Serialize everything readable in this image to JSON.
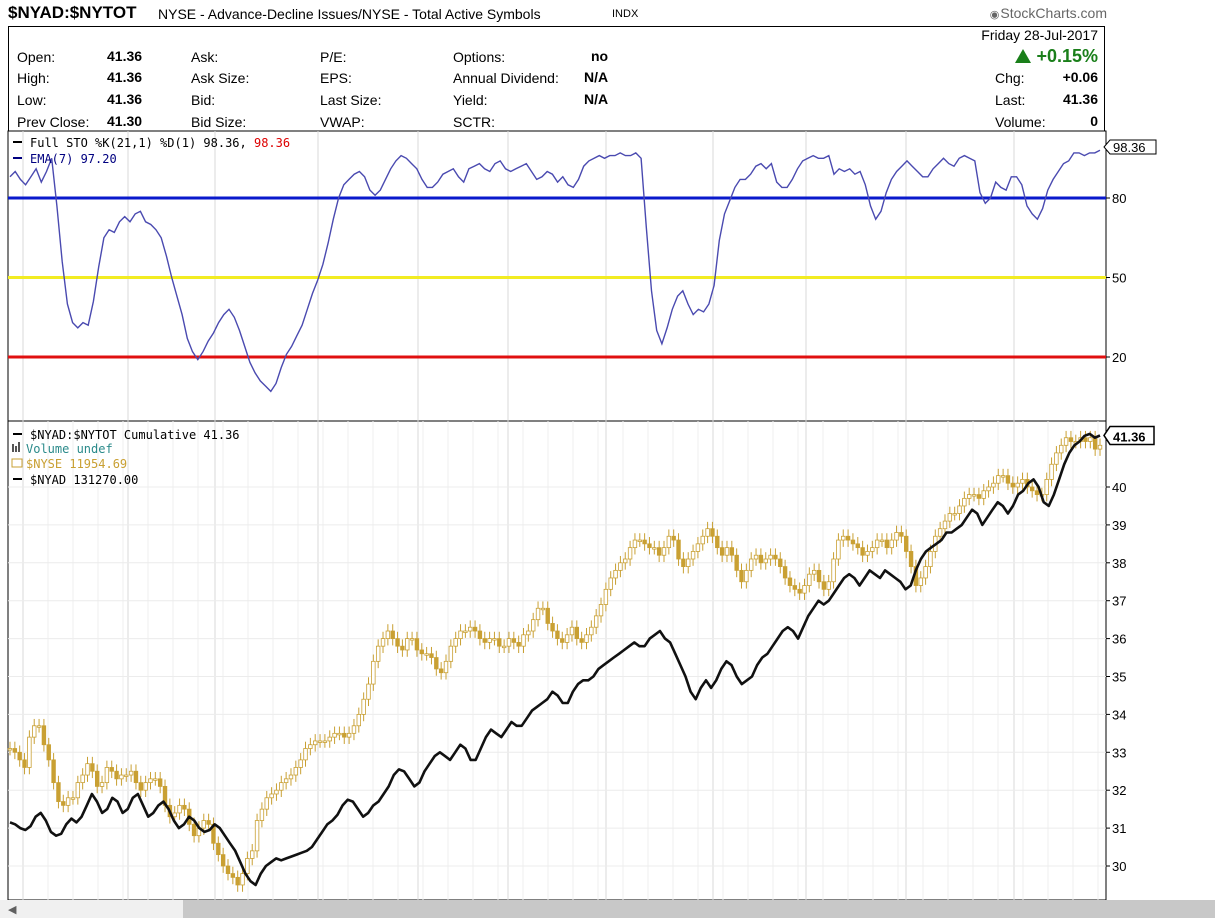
{
  "header": {
    "symbol": "$NYAD:$NYTOT",
    "description": "NYSE - Advance-Decline Issues/NYSE - Total Active Symbols",
    "exchange": "INDX",
    "brand": "StockCharts.com",
    "brand_icon": "copyright-icon"
  },
  "quote": {
    "col1": [
      {
        "label": "Open:",
        "value": "41.36"
      },
      {
        "label": "High:",
        "value": "41.36"
      },
      {
        "label": "Low:",
        "value": "41.36"
      },
      {
        "label": "Prev Close:",
        "value": "41.30"
      }
    ],
    "col2": [
      "Ask:",
      "Ask Size:",
      "Bid:",
      "Bid Size:"
    ],
    "col3": [
      "P/E:",
      "EPS:",
      "Last Size:",
      "VWAP:"
    ],
    "col4": [
      {
        "label": "Options:",
        "value": "no"
      },
      {
        "label": "Annual Dividend:",
        "value": "N/A"
      },
      {
        "label": "Yield:",
        "value": "N/A"
      },
      {
        "label": "SCTR:",
        "value": ""
      }
    ],
    "date": "Friday  28-Jul-2017",
    "change_pct": "+0.15%",
    "change_color": "#1a7f1a",
    "right": [
      {
        "label": "Chg:",
        "value": "+0.06"
      },
      {
        "label": "Last:",
        "value": "41.36"
      },
      {
        "label": "Volume:",
        "value": "0"
      }
    ]
  },
  "chart_data": [
    {
      "type": "line",
      "panel": "stochastic",
      "legend": [
        {
          "prefix": "Full STO %K(21,1) %D(1) 98.36, ",
          "extra": "98.36",
          "extra_color": "#dd0000",
          "color": "#000000"
        },
        {
          "prefix": "EMA(7) 97.20",
          "extra": "",
          "color": "#000080"
        }
      ],
      "y_ticks": [
        "80",
        "50",
        "20"
      ],
      "ylim": [
        0,
        100
      ],
      "reference_lines": [
        {
          "value": 80,
          "color": "#0a1acc"
        },
        {
          "value": 50,
          "color": "#f2ec22"
        },
        {
          "value": 20,
          "color": "#e01010"
        }
      ],
      "last_value_tag": "98.36",
      "series": [
        {
          "color": "#4a4ab0",
          "values": [
            88,
            90,
            87,
            85,
            88,
            91,
            86,
            90,
            95,
            77,
            56,
            40,
            33,
            31,
            33,
            32,
            41,
            54,
            65,
            68,
            67,
            71,
            73,
            71,
            74,
            75,
            71,
            70,
            68,
            65,
            58,
            50,
            43,
            36,
            27,
            22,
            19,
            22,
            26,
            29,
            33,
            36,
            38,
            35,
            30,
            24,
            18,
            14,
            11,
            9,
            7,
            10,
            16,
            21,
            24,
            28,
            32,
            38,
            44,
            49,
            55,
            63,
            72,
            80,
            85,
            87,
            89,
            90,
            88,
            83,
            81,
            83,
            87,
            91,
            94,
            96,
            95,
            93,
            91,
            87,
            84,
            84,
            86,
            89,
            90,
            91,
            88,
            86,
            91,
            92,
            93,
            91,
            90,
            93,
            94,
            91,
            90,
            91,
            92,
            93,
            90,
            87,
            88,
            90,
            89,
            86,
            88,
            85,
            84,
            87,
            92,
            94,
            95,
            96,
            95,
            96,
            96,
            97,
            96,
            96,
            97,
            95,
            69,
            45,
            30,
            25,
            31,
            38,
            43,
            45,
            40,
            36,
            38,
            37,
            40,
            47,
            64,
            74,
            79,
            84,
            87,
            87,
            89,
            92,
            93,
            91,
            93,
            86,
            84,
            84,
            87,
            91,
            94,
            95,
            96,
            95,
            95,
            96,
            89,
            91,
            90,
            91,
            89,
            90,
            85,
            77,
            72,
            75,
            82,
            87,
            90,
            92,
            94,
            92,
            90,
            88,
            88,
            91,
            93,
            95,
            93,
            92,
            95,
            96,
            95,
            94,
            82,
            78,
            80,
            86,
            84,
            83,
            88,
            88,
            85,
            77,
            74,
            72,
            76,
            83,
            87,
            90,
            93,
            94,
            97,
            97,
            96,
            97,
            97,
            98
          ]
        }
      ]
    },
    {
      "type": "line",
      "panel": "price",
      "legend": [
        {
          "text": "$NYAD:$NYTOT Cumulative 41.36",
          "color": "#000000"
        },
        {
          "text": "Volume undef",
          "color": "#2a8a8a"
        },
        {
          "text": "$NYSE 11954.69",
          "color": "#c9a033"
        },
        {
          "text": "$NYAD 131270.00",
          "color": "#000000"
        }
      ],
      "y_ticks": [
        "40",
        "39",
        "38",
        "37",
        "36",
        "35",
        "34",
        "33",
        "32",
        "31",
        "30"
      ],
      "ylim": [
        29.5,
        41.7
      ],
      "last_value_tag": "41.36",
      "series": [
        {
          "name": "$NYAD:$NYTOT Cumulative",
          "color": "#111111",
          "values": [
            31.15,
            31.1,
            31.0,
            30.95,
            31.05,
            31.3,
            31.4,
            31.2,
            30.9,
            30.8,
            30.85,
            31.1,
            31.25,
            31.15,
            31.3,
            31.6,
            31.9,
            31.7,
            31.4,
            31.5,
            31.8,
            31.7,
            31.4,
            31.5,
            31.8,
            31.9,
            31.6,
            31.3,
            31.4,
            31.6,
            31.7,
            31.5,
            31.2,
            31.0,
            31.1,
            31.3,
            31.2,
            31.0,
            30.9,
            30.95,
            31.1,
            31.0,
            30.8,
            30.6,
            30.4,
            30.1,
            29.8,
            29.6,
            29.5,
            29.8,
            30.0,
            30.1,
            30.2,
            30.15,
            30.2,
            30.25,
            30.3,
            30.35,
            30.4,
            30.5,
            30.7,
            30.9,
            31.1,
            31.2,
            31.35,
            31.6,
            31.75,
            31.7,
            31.5,
            31.3,
            31.4,
            31.6,
            31.7,
            31.9,
            32.1,
            32.4,
            32.55,
            32.5,
            32.3,
            32.1,
            32.2,
            32.5,
            32.7,
            32.9,
            33.0,
            32.9,
            32.8,
            33.0,
            33.2,
            33.1,
            32.8,
            32.8,
            33.1,
            33.4,
            33.6,
            33.5,
            33.4,
            33.6,
            33.8,
            33.7,
            33.7,
            33.9,
            34.1,
            34.2,
            34.3,
            34.4,
            34.6,
            34.5,
            34.3,
            34.3,
            34.6,
            34.8,
            34.9,
            34.9,
            35.0,
            35.2,
            35.3,
            35.4,
            35.5,
            35.6,
            35.7,
            35.8,
            35.9,
            35.8,
            35.8,
            36.0,
            36.1,
            36.2,
            36.0,
            35.9,
            35.6,
            35.3,
            35.0,
            34.6,
            34.4,
            34.7,
            34.9,
            34.7,
            34.9,
            35.2,
            35.4,
            35.3,
            35.0,
            34.8,
            34.9,
            35.0,
            35.3,
            35.5,
            35.6,
            35.8,
            36.0,
            36.2,
            36.3,
            36.2,
            36.0,
            36.3,
            36.6,
            36.8,
            37.0,
            36.9,
            37.0,
            37.2,
            37.4,
            37.6,
            37.7,
            37.6,
            37.4,
            37.6,
            37.8,
            37.7,
            37.6,
            37.8,
            37.7,
            37.6,
            37.5,
            37.3,
            37.4,
            37.8,
            38.1,
            38.3,
            38.4,
            38.5,
            38.6,
            38.8,
            38.8,
            38.9,
            39.0,
            39.2,
            39.4,
            39.3,
            39.0,
            39.2,
            39.4,
            39.6,
            39.5,
            39.3,
            39.5,
            39.8,
            39.9,
            40.1,
            40.2,
            40.0,
            39.6,
            39.5,
            39.8,
            40.2,
            40.6,
            40.9,
            41.1,
            41.2,
            41.35,
            41.4,
            41.3,
            41.36
          ]
        },
        {
          "name": "$NYSE",
          "color": "#c9a033",
          "values": [
            33.1,
            33.0,
            32.8,
            32.6,
            33.4,
            33.7,
            33.7,
            33.2,
            32.8,
            32.2,
            31.7,
            31.6,
            31.8,
            31.8,
            32.2,
            32.4,
            32.7,
            32.5,
            32.1,
            32.2,
            32.6,
            32.5,
            32.3,
            32.4,
            32.4,
            32.5,
            32.2,
            32.0,
            32.2,
            32.3,
            32.3,
            32.1,
            31.6,
            31.3,
            31.4,
            31.6,
            31.5,
            31.1,
            30.8,
            31.0,
            31.2,
            31.1,
            30.6,
            30.3,
            30.0,
            29.8,
            29.7,
            29.5,
            29.8,
            30.2,
            30.4,
            31.2,
            31.5,
            31.8,
            31.9,
            32.0,
            32.2,
            32.3,
            32.4,
            32.6,
            32.8,
            33.1,
            33.2,
            33.3,
            33.3,
            33.3,
            33.4,
            33.5,
            33.5,
            33.4,
            33.5,
            33.7,
            34.0,
            34.4,
            34.8,
            35.4,
            35.8,
            36.0,
            36.2,
            36.0,
            35.8,
            35.7,
            36.0,
            36.0,
            35.7,
            35.6,
            35.6,
            35.5,
            35.2,
            35.1,
            35.4,
            35.8,
            36.0,
            36.2,
            36.2,
            36.3,
            36.2,
            36.0,
            35.9,
            36.0,
            36.0,
            35.8,
            35.8,
            36.0,
            35.9,
            35.8,
            36.1,
            36.2,
            36.5,
            36.8,
            36.8,
            36.4,
            36.2,
            36.0,
            35.9,
            36.1,
            36.3,
            36.0,
            35.9,
            36.1,
            36.3,
            36.6,
            36.9,
            37.3,
            37.6,
            37.8,
            38.0,
            38.1,
            38.4,
            38.6,
            38.6,
            38.5,
            38.4,
            38.4,
            38.2,
            38.4,
            38.7,
            38.6,
            38.1,
            37.9,
            38.1,
            38.3,
            38.5,
            38.7,
            38.9,
            38.7,
            38.4,
            38.2,
            38.4,
            38.2,
            37.8,
            37.5,
            37.8,
            38.1,
            38.2,
            38.0,
            38.1,
            38.2,
            38.1,
            37.9,
            37.6,
            37.4,
            37.3,
            37.2,
            37.4,
            37.7,
            37.8,
            37.5,
            37.3,
            37.5,
            38.1,
            38.6,
            38.7,
            38.6,
            38.5,
            38.4,
            38.2,
            38.3,
            38.4,
            38.6,
            38.6,
            38.4,
            38.6,
            38.8,
            38.7,
            38.3,
            37.9,
            37.4,
            37.6,
            37.9,
            38.3,
            38.7,
            38.9,
            39.1,
            39.3,
            39.3,
            39.5,
            39.7,
            39.8,
            39.8,
            39.7,
            39.9,
            40.0,
            40.1,
            40.3,
            40.3,
            40.1,
            40.0,
            40.1,
            40.2,
            40.0,
            39.9,
            39.8,
            39.8,
            40.2,
            40.6,
            40.9,
            41.1,
            41.3,
            41.2,
            41.2,
            41.3,
            41.2,
            41.3,
            41.0,
            41.1
          ]
        }
      ]
    }
  ]
}
